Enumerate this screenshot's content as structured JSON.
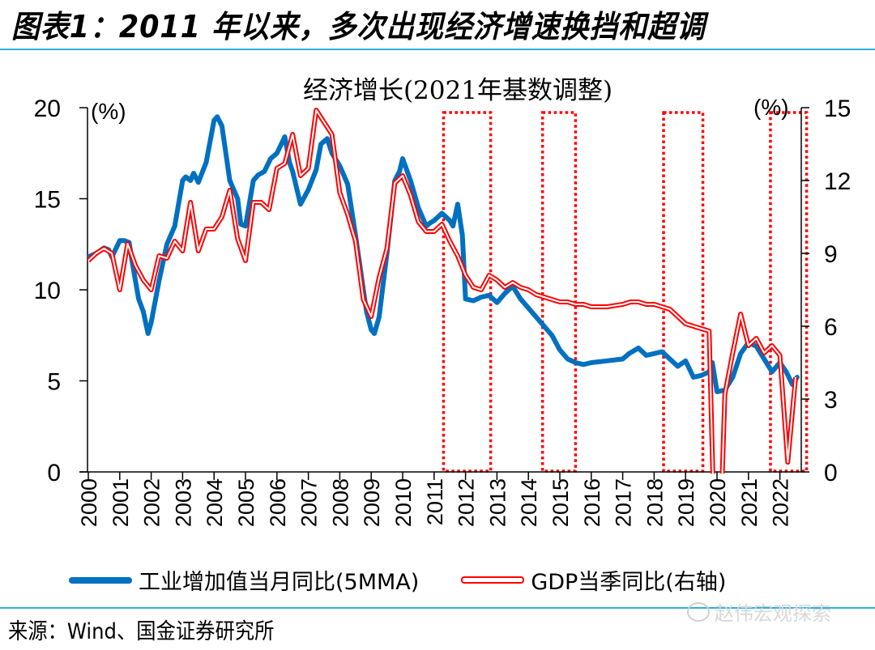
{
  "figure": {
    "title": "图表1：2011 年以来，多次出现经济增速换挡和超调",
    "source": "来源：Wind、国金证券研究所",
    "watermark": "赵伟宏观探索"
  },
  "chart_data": {
    "type": "line",
    "title": "经济增长(2021年基数调整)",
    "left_axis": {
      "label": "(%)",
      "ylim": [
        0,
        20
      ],
      "ticks": [
        0,
        5,
        10,
        15,
        20
      ]
    },
    "right_axis": {
      "label": "(%)",
      "ylim": [
        0,
        15
      ],
      "ticks": [
        0,
        3,
        6,
        9,
        12,
        15
      ]
    },
    "x_ticks": [
      "2000",
      "2001",
      "2002",
      "2003",
      "2004",
      "2005",
      "2006",
      "2007",
      "2008",
      "2009",
      "2010",
      "2011",
      "2012",
      "2013",
      "2014",
      "2015",
      "2016",
      "2017",
      "2018",
      "2019",
      "2020",
      "2021",
      "2022"
    ],
    "xlim": [
      2000,
      2022.67
    ],
    "grid": false,
    "legend_position": "bottom",
    "highlight_periods": [
      {
        "x0": 2011.3,
        "x1": 2012.8
      },
      {
        "x0": 2014.45,
        "x1": 2015.5
      },
      {
        "x0": 2018.3,
        "x1": 2019.55
      },
      {
        "x0": 2021.7,
        "x1": 2022.85
      }
    ],
    "series": [
      {
        "name": "工业增加值当月同比(5MMA)",
        "axis": "left",
        "color": "#0070c0",
        "style": "thick",
        "x": [
          2000.0,
          2000.25,
          2000.5,
          2000.65,
          2000.75,
          2001.0,
          2001.15,
          2001.3,
          2001.4,
          2001.6,
          2001.75,
          2001.9,
          2002.0,
          2002.25,
          2002.5,
          2002.75,
          2003.0,
          2003.1,
          2003.25,
          2003.35,
          2003.5,
          2003.75,
          2004.0,
          2004.1,
          2004.25,
          2004.5,
          2004.75,
          2004.85,
          2005.0,
          2005.25,
          2005.4,
          2005.6,
          2005.8,
          2006.0,
          2006.25,
          2006.4,
          2006.5,
          2006.75,
          2007.0,
          2007.25,
          2007.4,
          2007.6,
          2007.75,
          2008.0,
          2008.25,
          2008.5,
          2008.75,
          2008.85,
          2009.0,
          2009.1,
          2009.25,
          2009.5,
          2009.75,
          2009.9,
          2010.0,
          2010.25,
          2010.5,
          2010.75,
          2010.9,
          2011.0,
          2011.25,
          2011.5,
          2011.6,
          2011.75,
          2011.9,
          2012.0,
          2012.25,
          2012.5,
          2012.75,
          2013.0,
          2013.25,
          2013.5,
          2013.75,
          2014.0,
          2014.25,
          2014.5,
          2014.75,
          2015.0,
          2015.25,
          2015.5,
          2015.75,
          2016.0,
          2016.5,
          2017.0,
          2017.2,
          2017.5,
          2017.75,
          2018.0,
          2018.25,
          2018.5,
          2018.75,
          2019.0,
          2019.25,
          2019.5,
          2019.75,
          2019.85,
          2020.0,
          2020.25,
          2020.5,
          2020.75,
          2021.0,
          2021.25,
          2021.5,
          2021.75,
          2022.0,
          2022.2,
          2022.4,
          2022.55
        ],
        "values": [
          11.8,
          12.0,
          12.3,
          12.2,
          11.8,
          12.7,
          12.7,
          12.6,
          11.5,
          9.5,
          8.8,
          7.6,
          8.2,
          10.5,
          12.5,
          13.5,
          16.0,
          16.2,
          16.0,
          16.4,
          15.9,
          17.0,
          19.3,
          19.5,
          19.0,
          16.0,
          15.0,
          13.6,
          13.5,
          16.0,
          16.3,
          16.5,
          17.2,
          17.5,
          18.4,
          17.0,
          16.5,
          14.7,
          15.5,
          16.6,
          18.0,
          18.3,
          17.5,
          16.8,
          15.8,
          13.0,
          10.0,
          8.8,
          7.8,
          7.6,
          8.5,
          12.0,
          16.0,
          16.5,
          17.2,
          16.0,
          14.5,
          13.5,
          13.7,
          13.8,
          14.2,
          13.8,
          13.5,
          14.7,
          13.0,
          9.5,
          9.4,
          9.6,
          9.7,
          9.3,
          9.8,
          10.2,
          9.5,
          9.0,
          8.5,
          8.0,
          7.5,
          6.7,
          6.2,
          6.0,
          5.9,
          6.0,
          6.1,
          6.2,
          6.5,
          6.8,
          6.4,
          6.5,
          6.6,
          6.2,
          5.8,
          6.1,
          5.2,
          5.3,
          5.5,
          6.0,
          4.4,
          4.5,
          5.2,
          6.5,
          7.1,
          6.9,
          6.2,
          5.5,
          6.0,
          5.5,
          4.8,
          5.2
        ]
      },
      {
        "name": "GDP当季同比(右轴)",
        "axis": "right",
        "color": "#ff0000",
        "style": "double",
        "x": [
          2000.0,
          2000.25,
          2000.5,
          2000.75,
          2001.0,
          2001.25,
          2001.5,
          2001.75,
          2002.0,
          2002.25,
          2002.5,
          2002.75,
          2003.0,
          2003.25,
          2003.5,
          2003.75,
          2004.0,
          2004.25,
          2004.5,
          2004.75,
          2005.0,
          2005.25,
          2005.5,
          2005.75,
          2006.0,
          2006.25,
          2006.5,
          2006.75,
          2007.0,
          2007.25,
          2007.5,
          2007.75,
          2008.0,
          2008.25,
          2008.5,
          2008.75,
          2009.0,
          2009.25,
          2009.5,
          2009.75,
          2010.0,
          2010.25,
          2010.5,
          2010.75,
          2011.0,
          2011.25,
          2011.5,
          2011.75,
          2012.0,
          2012.25,
          2012.5,
          2012.75,
          2013.0,
          2013.25,
          2013.5,
          2013.75,
          2014.0,
          2014.25,
          2014.5,
          2014.75,
          2015.0,
          2015.25,
          2015.5,
          2015.75,
          2016.0,
          2016.5,
          2017.0,
          2017.25,
          2017.5,
          2017.75,
          2018.0,
          2018.25,
          2018.5,
          2018.75,
          2019.0,
          2019.25,
          2019.5,
          2019.75,
          2020.0,
          2020.25,
          2020.5,
          2020.75,
          2021.0,
          2021.25,
          2021.5,
          2021.75,
          2022.0,
          2022.25,
          2022.5
        ],
        "values": [
          8.7,
          9.0,
          9.2,
          9.0,
          7.5,
          9.4,
          8.5,
          7.9,
          7.5,
          8.9,
          8.8,
          9.5,
          9.1,
          11.1,
          9.1,
          10.0,
          10.0,
          10.5,
          11.6,
          9.6,
          8.7,
          11.1,
          11.1,
          10.8,
          12.5,
          12.7,
          13.9,
          12.2,
          12.5,
          14.9,
          14.4,
          13.9,
          11.5,
          10.6,
          9.5,
          7.1,
          6.4,
          8.0,
          9.2,
          11.9,
          12.2,
          11.4,
          10.3,
          9.9,
          9.9,
          10.2,
          9.5,
          8.9,
          8.1,
          7.6,
          7.5,
          8.1,
          7.9,
          7.6,
          7.8,
          7.6,
          7.5,
          7.3,
          7.2,
          7.1,
          7.0,
          7.0,
          6.9,
          6.9,
          6.8,
          6.8,
          6.9,
          7.0,
          7.0,
          6.9,
          6.9,
          6.8,
          6.7,
          6.4,
          6.1,
          6.0,
          5.9,
          5.8,
          -6.8,
          3.2,
          4.9,
          6.5,
          5.2,
          5.5,
          4.9,
          5.2,
          4.8,
          0.4,
          3.9
        ]
      }
    ]
  }
}
